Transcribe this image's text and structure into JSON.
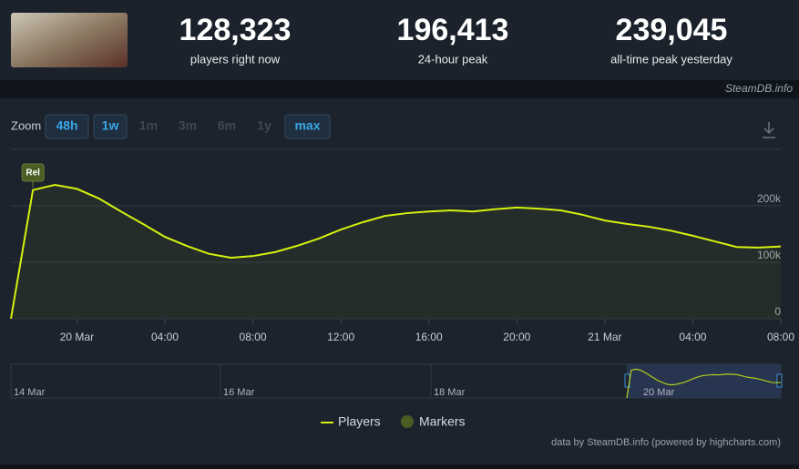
{
  "header": {
    "stats": [
      {
        "value": "128,323",
        "label": "players right now"
      },
      {
        "value": "196,413",
        "label": "24-hour peak"
      },
      {
        "value": "239,045",
        "label": "all-time peak yesterday"
      }
    ],
    "credit": "SteamDB.info"
  },
  "zoom": {
    "label": "Zoom",
    "buttons": [
      {
        "text": "48h",
        "enabled": true
      },
      {
        "text": "1w",
        "enabled": true
      },
      {
        "text": "1m",
        "enabled": false
      },
      {
        "text": "3m",
        "enabled": false
      },
      {
        "text": "6m",
        "enabled": false
      },
      {
        "text": "1y",
        "enabled": false
      },
      {
        "text": "max",
        "enabled": true
      }
    ]
  },
  "chart_data": {
    "type": "line",
    "x": [
      -3,
      -2,
      -1,
      0,
      1,
      2,
      3,
      4,
      5,
      6,
      7,
      8,
      9,
      10,
      11,
      12,
      13,
      14,
      15,
      16,
      17,
      18,
      19,
      20,
      21,
      22,
      23,
      24,
      25,
      26,
      27,
      28,
      29,
      30,
      31,
      32
    ],
    "series": [
      {
        "name": "Players",
        "color": "#d4f20f",
        "values": [
          0,
          228000,
          237000,
          230000,
          213000,
          190000,
          168000,
          145000,
          129000,
          115000,
          108000,
          111000,
          118000,
          129000,
          142000,
          158000,
          171000,
          182000,
          187000,
          190000,
          192000,
          190000,
          194000,
          197000,
          195000,
          192000,
          184000,
          174000,
          168000,
          163000,
          156000,
          147000,
          137000,
          127000,
          126000,
          128000
        ]
      }
    ],
    "xlim": [
      -3,
      32
    ],
    "ylim": [
      0,
      300000
    ],
    "xticks": [
      {
        "value": 0,
        "label": "20 Mar"
      },
      {
        "value": 4,
        "label": "04:00"
      },
      {
        "value": 8,
        "label": "08:00"
      },
      {
        "value": 12,
        "label": "12:00"
      },
      {
        "value": 16,
        "label": "16:00"
      },
      {
        "value": 20,
        "label": "20:00"
      },
      {
        "value": 24,
        "label": "21 Mar"
      },
      {
        "value": 28,
        "label": "04:00"
      },
      {
        "value": 32,
        "label": "08:00"
      }
    ],
    "yticks": [
      0,
      {
        "value": 100000,
        "label": "100k"
      },
      {
        "value": 200000,
        "label": "200k"
      }
    ],
    "grid": true,
    "markers": {
      "name": "Markers",
      "color": "#4a5d23",
      "flags": [
        {
          "x": -2,
          "label": "Rel"
        }
      ]
    },
    "navigator": {
      "labels": [
        "14 Mar",
        "16 Mar",
        "18 Mar",
        "20 Mar"
      ]
    },
    "credits": "data by SteamDB.info (powered by highcharts.com)"
  }
}
